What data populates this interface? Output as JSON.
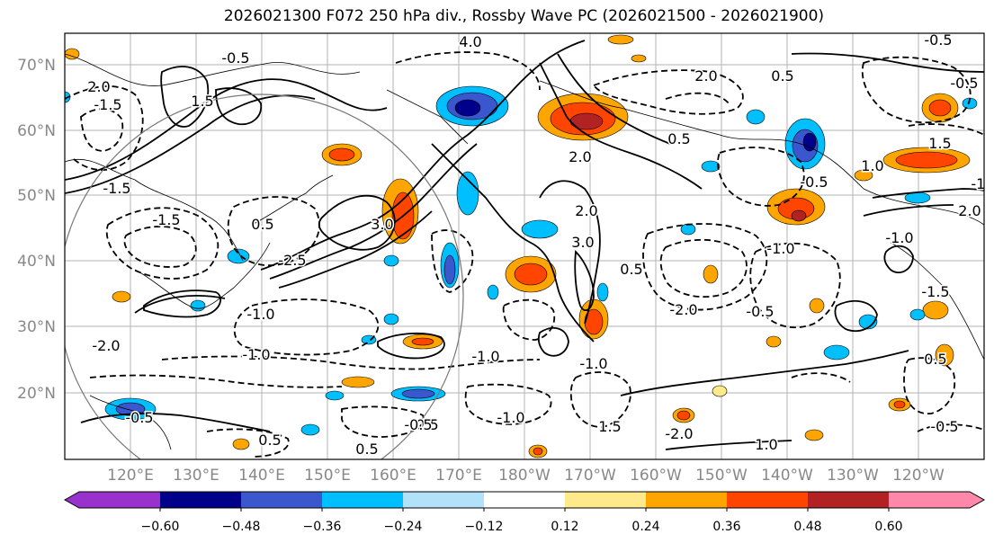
{
  "title": "2026021300 F072 250 hPa div., Rossby Wave PC (2026021500 - 2026021900)",
  "lat_labels": [
    "70°N",
    "60°N",
    "50°N",
    "40°N",
    "30°N",
    "20°N"
  ],
  "lon_labels": [
    "120°E",
    "130°E",
    "140°E",
    "150°E",
    "160°E",
    "170°E",
    "180°W",
    "170°W",
    "160°W",
    "150°W",
    "140°W",
    "130°W",
    "120°W"
  ],
  "colorbar": {
    "ticks": [
      "−0.60",
      "−0.48",
      "−0.36",
      "−0.24",
      "−0.12",
      "0.12",
      "0.24",
      "0.36",
      "0.48",
      "0.60"
    ],
    "colors": [
      "#9932CC",
      "#00008B",
      "#3A57CD",
      "#00BFFF",
      "#B2E1FA",
      "#FFFFFF",
      "#FFE98A",
      "#FFA500",
      "#FF4500",
      "#B22222",
      "#FF88AA"
    ]
  },
  "contour_labels": [
    {
      "text": "4.0"
    },
    {
      "text": "-0.5"
    },
    {
      "text": "1.5"
    },
    {
      "text": "2.0"
    },
    {
      "text": "-1.5"
    },
    {
      "text": "0.5"
    },
    {
      "text": "-1.5"
    },
    {
      "text": "-2.5"
    },
    {
      "text": "3.0"
    },
    {
      "text": "-1.0"
    },
    {
      "text": "-1.0"
    },
    {
      "text": "-1.0"
    },
    {
      "text": "0.5"
    },
    {
      "text": "-0.5"
    },
    {
      "text": "0.5"
    },
    {
      "text": "-1.0"
    },
    {
      "text": "-0.5"
    },
    {
      "text": "2.0"
    },
    {
      "text": "3.0"
    },
    {
      "text": "2.0"
    },
    {
      "text": "0.5"
    },
    {
      "text": "-1.0"
    },
    {
      "text": "1.5"
    },
    {
      "text": "-2.0"
    },
    {
      "text": "-1.0"
    },
    {
      "text": "-0.5"
    },
    {
      "text": "1.0"
    },
    {
      "text": "-1.0"
    },
    {
      "text": "2.0"
    },
    {
      "text": "0.5"
    },
    {
      "text": "-2.0"
    },
    {
      "text": "0.5"
    },
    {
      "text": "-0.5"
    },
    {
      "text": "-0.5"
    },
    {
      "text": "0.5"
    },
    {
      "text": "-1.5"
    },
    {
      "text": "-0.5"
    },
    {
      "text": "2.0"
    },
    {
      "text": "-1.0"
    },
    {
      "text": "-0.5"
    },
    {
      "text": "0.5"
    },
    {
      "text": "1.5"
    },
    {
      "text": "-2.0"
    },
    {
      "text": "-1.5"
    },
    {
      "text": "1.0"
    }
  ],
  "style": {
    "axis_label_color": "#888888",
    "grid_color": "#b3b3b3"
  }
}
